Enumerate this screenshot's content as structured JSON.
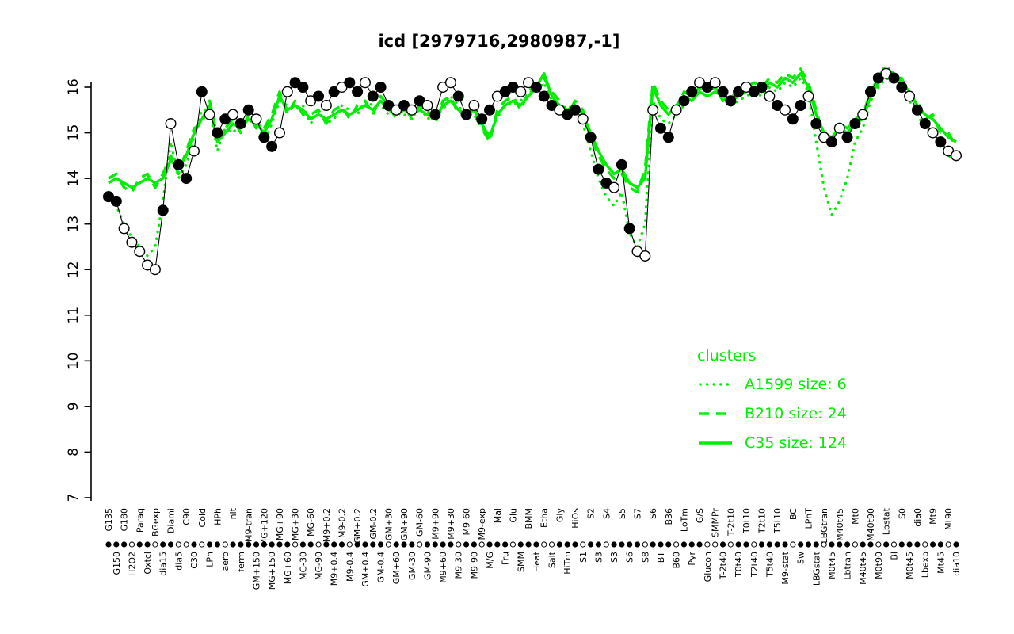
{
  "title": "icd [2979716,2980987,-1]",
  "colors": {
    "cluster_green": "#00EE00",
    "series_black": "#000000",
    "background": "#FFFFFF"
  },
  "chart_data": {
    "type": "line",
    "title": "icd [2979716,2980987,-1]",
    "xlabel": "",
    "ylabel": "",
    "ylim": [
      7,
      16.5
    ],
    "yticks": [
      7,
      8,
      9,
      10,
      11,
      12,
      13,
      14,
      15,
      16
    ],
    "grid": false,
    "legend": {
      "title": "clusters",
      "position": "right-middle",
      "entries": [
        {
          "label": "A1599 size: 6",
          "style": "dotted"
        },
        {
          "label": "B210 size: 24",
          "style": "dashed"
        },
        {
          "label": "C35 size: 124",
          "style": "solid"
        }
      ]
    },
    "categories": [
      "G135",
      "G150",
      "G180",
      "H2O2",
      "Paraq",
      "Oxtcl",
      "LBGexp",
      "dia15",
      "Diami",
      "dia5",
      "C90",
      "C30",
      "Cold",
      "LPh",
      "HPh",
      "aero",
      "nit",
      "ferm",
      "M9-tran",
      "GM+150",
      "MG+120",
      "MG+150",
      "MG+90",
      "MG+60",
      "MG+30",
      "MG-30",
      "MG-60",
      "MG-90",
      "M9+0.2",
      "M9+0.4",
      "M9-0.2",
      "M9-0.4",
      "GM+0.2",
      "GM+0.4",
      "GM-0.2",
      "GM-0.4",
      "GM+30",
      "GM+60",
      "GM+90",
      "GM-30",
      "GM-60",
      "GM-90",
      "M9+90",
      "M9+60",
      "M9+30",
      "M9-30",
      "M9-60",
      "M9-90",
      "M9-exp",
      "M/G",
      "Mal",
      "Fru",
      "Glu",
      "SMM",
      "BMM",
      "Heat",
      "Etha",
      "Salt",
      "Gly",
      "HiTm",
      "HiOs",
      "S1",
      "S2",
      "S3",
      "S4",
      "S3",
      "S5",
      "S6",
      "S7",
      "S8",
      "S6",
      "BT",
      "B36",
      "B60",
      "LoTm",
      "Pyr",
      "G/S",
      "Glucon",
      "SMMPr",
      "T-2t40",
      "T-2t10",
      "T0t40",
      "T0t10",
      "T2t40",
      "T2t10",
      "T5t40",
      "T5t10",
      "M9-stat",
      "BC",
      "Sw",
      "LPhT",
      "LBGstat",
      "LBGtran",
      "M0t45",
      "M40t45",
      "Lbtran",
      "Mt0",
      "M40t45",
      "M40t90",
      "M0t90",
      "Lbstat",
      "Bl",
      "S0",
      "M0t45",
      "dia0",
      "Lbexp",
      "Mt9",
      "Mt45",
      "Mt90",
      "dia10"
    ],
    "series": [
      {
        "name": "A1599",
        "color": "#00EE00",
        "style": "dotted",
        "size": 6,
        "values": [
          13.7,
          13.4,
          13.0,
          12.7,
          12.5,
          12.3,
          12.5,
          13.5,
          14.8,
          14.0,
          14.3,
          14.9,
          15.5,
          15.5,
          14.6,
          15.1,
          15.0,
          15.2,
          15.2,
          15.4,
          14.8,
          15.2,
          15.7,
          15.6,
          15.5,
          15.6,
          15.2,
          15.5,
          15.2,
          15.3,
          15.6,
          15.5,
          15.4,
          15.7,
          15.6,
          15.6,
          15.4,
          15.5,
          15.4,
          15.3,
          15.6,
          15.3,
          15.4,
          15.5,
          15.8,
          15.6,
          15.3,
          15.6,
          15.1,
          15.0,
          15.3,
          15.7,
          15.6,
          15.7,
          15.9,
          15.9,
          16.1,
          15.7,
          15.5,
          15.6,
          15.5,
          15.2,
          14.6,
          14.0,
          13.6,
          13.4,
          13.7,
          12.8,
          12.5,
          13.0,
          15.7,
          15.3,
          15.2,
          15.4,
          15.6,
          15.8,
          16.0,
          15.9,
          16.0,
          15.8,
          15.6,
          15.7,
          15.8,
          15.9,
          15.8,
          16.0,
          15.9,
          16.1,
          16.0,
          16.2,
          15.9,
          14.8,
          13.8,
          13.2,
          13.5,
          14.0,
          14.8,
          15.1,
          15.7,
          16.0,
          16.2,
          16.1,
          16.0,
          15.7,
          15.4,
          15.1,
          15.0,
          14.7,
          14.5,
          14.4
        ]
      },
      {
        "name": "B210",
        "color": "#00EE00",
        "style": "dashed",
        "size": 24,
        "values": [
          14.0,
          14.1,
          13.8,
          13.7,
          14.0,
          14.1,
          13.8,
          14.1,
          14.5,
          14.1,
          14.6,
          15.1,
          15.2,
          15.7,
          14.9,
          15.1,
          15.3,
          15.0,
          15.4,
          15.1,
          15.1,
          15.4,
          15.9,
          15.4,
          15.7,
          15.4,
          15.4,
          15.5,
          15.2,
          15.5,
          15.6,
          15.3,
          15.6,
          15.7,
          15.4,
          15.8,
          15.6,
          15.3,
          15.6,
          15.3,
          15.6,
          15.5,
          15.2,
          15.7,
          15.8,
          15.4,
          15.5,
          15.4,
          15.1,
          14.8,
          15.5,
          15.7,
          15.8,
          15.5,
          15.9,
          16.1,
          16.2,
          15.9,
          15.7,
          15.4,
          15.7,
          15.5,
          14.9,
          14.5,
          14.2,
          14.0,
          14.1,
          13.8,
          13.7,
          14.2,
          16.1,
          15.7,
          15.5,
          15.5,
          15.9,
          15.8,
          16.0,
          15.9,
          16.0,
          15.7,
          15.8,
          15.9,
          16.0,
          16.1,
          16.0,
          16.2,
          16.1,
          16.3,
          16.2,
          16.4,
          16.1,
          15.5,
          14.9,
          14.8,
          15.2,
          15.1,
          15.3,
          15.4,
          15.9,
          16.2,
          16.5,
          16.2,
          16.2,
          15.8,
          15.7,
          15.3,
          15.4,
          15.0,
          15.0,
          14.7
        ]
      },
      {
        "name": "C35",
        "color": "#00EE00",
        "style": "solid",
        "size": 124,
        "values": [
          13.9,
          14.0,
          13.9,
          13.8,
          13.9,
          14.0,
          13.9,
          14.0,
          14.4,
          14.2,
          14.5,
          15.0,
          15.3,
          15.6,
          14.8,
          15.0,
          15.2,
          15.1,
          15.3,
          15.2,
          15.0,
          15.3,
          15.8,
          15.5,
          15.6,
          15.5,
          15.3,
          15.4,
          15.3,
          15.4,
          15.5,
          15.4,
          15.5,
          15.6,
          15.5,
          15.7,
          15.5,
          15.4,
          15.5,
          15.4,
          15.5,
          15.4,
          15.3,
          15.6,
          15.7,
          15.5,
          15.4,
          15.5,
          15.2,
          14.9,
          15.4,
          15.6,
          15.7,
          15.6,
          15.8,
          16.0,
          16.3,
          15.8,
          15.6,
          15.5,
          15.6,
          15.4,
          15.0,
          14.6,
          14.3,
          14.1,
          14.2,
          13.9,
          13.8,
          14.0,
          16.0,
          15.6,
          15.4,
          15.6,
          15.8,
          15.7,
          15.9,
          15.8,
          15.9,
          15.8,
          15.7,
          15.8,
          15.9,
          16.0,
          15.9,
          16.1,
          16.0,
          16.2,
          16.1,
          16.3,
          16.0,
          15.4,
          15.0,
          14.9,
          15.1,
          15.0,
          15.2,
          15.3,
          15.8,
          16.1,
          16.4,
          16.3,
          16.1,
          15.9,
          15.6,
          15.4,
          15.3,
          15.1,
          14.9,
          14.8
        ]
      },
      {
        "name": "icd",
        "color": "#000000",
        "style": "line-markers",
        "values": [
          13.6,
          13.5,
          12.9,
          12.6,
          12.4,
          12.1,
          12.0,
          13.3,
          15.2,
          14.3,
          14.0,
          14.6,
          15.9,
          15.4,
          15.0,
          15.3,
          15.4,
          15.2,
          15.5,
          15.3,
          14.9,
          14.7,
          15.0,
          15.9,
          16.1,
          16.0,
          15.7,
          15.8,
          15.6,
          15.9,
          16.0,
          16.1,
          15.9,
          16.1,
          15.8,
          16.0,
          15.6,
          15.5,
          15.6,
          15.5,
          15.7,
          15.6,
          15.4,
          16.0,
          16.1,
          15.8,
          15.4,
          15.6,
          15.3,
          15.5,
          15.8,
          15.9,
          16.0,
          15.9,
          16.1,
          16.0,
          15.8,
          15.6,
          15.5,
          15.4,
          15.5,
          15.3,
          14.9,
          14.2,
          13.9,
          13.8,
          14.3,
          12.9,
          12.4,
          12.3,
          15.5,
          15.1,
          14.9,
          15.5,
          15.7,
          15.9,
          16.1,
          16.0,
          16.1,
          15.9,
          15.7,
          15.9,
          16.0,
          15.9,
          16.0,
          15.8,
          15.6,
          15.5,
          15.3,
          15.6,
          15.8,
          15.2,
          14.9,
          14.8,
          15.1,
          14.9,
          15.2,
          15.4,
          15.9,
          16.2,
          16.3,
          16.2,
          16.0,
          15.8,
          15.5,
          15.2,
          15.0,
          14.8,
          14.6,
          14.5
        ],
        "marker_filled": [
          1,
          1,
          0,
          0,
          0,
          0,
          0,
          1,
          0,
          1,
          1,
          0,
          1,
          0,
          1,
          1,
          0,
          1,
          1,
          0,
          1,
          1,
          0,
          0,
          1,
          1,
          0,
          1,
          0,
          1,
          0,
          1,
          1,
          0,
          1,
          1,
          1,
          0,
          1,
          0,
          1,
          0,
          1,
          0,
          0,
          1,
          1,
          0,
          1,
          1,
          0,
          1,
          1,
          0,
          0,
          1,
          1,
          1,
          0,
          1,
          1,
          0,
          1,
          1,
          1,
          0,
          1,
          1,
          0,
          0,
          0,
          1,
          1,
          0,
          1,
          1,
          0,
          1,
          0,
          1,
          1,
          1,
          0,
          1,
          1,
          0,
          1,
          0,
          1,
          1,
          0,
          1,
          0,
          1,
          0,
          1,
          1,
          0,
          1,
          1,
          0,
          1,
          1,
          0,
          1,
          1,
          0,
          1,
          0,
          0
        ]
      }
    ],
    "axis_dot_row": {
      "filled": [
        1,
        1,
        1,
        0,
        1,
        1,
        0,
        1,
        1,
        0,
        0,
        1,
        0,
        1,
        1,
        0,
        1,
        1,
        1,
        1,
        1,
        1,
        1,
        1,
        0,
        1,
        1,
        0,
        1,
        1,
        1,
        0,
        1,
        1,
        1,
        1,
        0,
        1,
        1,
        1,
        0,
        1,
        1,
        1,
        1,
        0,
        1,
        1,
        0,
        1,
        1,
        1,
        0,
        1,
        1,
        1,
        0,
        0,
        1,
        1,
        1,
        0,
        1,
        1,
        0,
        1,
        1,
        1,
        1,
        0,
        1,
        1,
        1,
        0,
        1,
        1,
        1,
        0,
        0,
        1,
        0,
        1,
        1,
        0,
        1,
        1,
        1,
        1,
        0,
        1,
        1,
        1,
        0,
        1,
        1,
        1,
        0,
        1,
        1,
        0,
        1,
        0,
        1,
        1,
        1,
        0,
        1,
        1,
        0,
        1
      ]
    }
  }
}
